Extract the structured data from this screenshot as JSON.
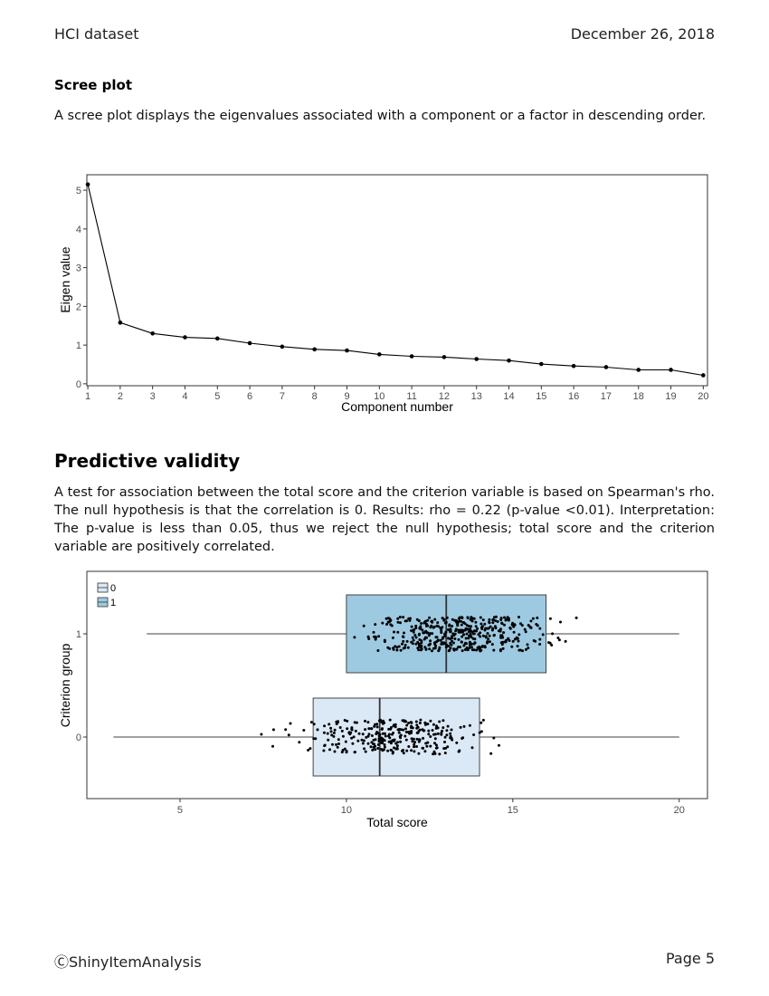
{
  "header": {
    "left": "HCI dataset",
    "right": "December 26, 2018"
  },
  "section_scree": {
    "heading": "Scree plot",
    "paragraph": "A scree plot displays the eigenvalues associated with a component or a factor in descending order."
  },
  "section_validity": {
    "heading": "Predictive validity",
    "paragraph": "A test for association between the total score and the criterion variable is based on Spearman's rho. The null hypothesis is that the correlation is 0. Results: rho = 0.22 (p-value <0.01). Interpretation: The p-value is less than 0.05, thus we reject the null hypothesis; total score and the criterion variable are positively correlated."
  },
  "footer": {
    "left": "ⒸShinyItemAnalysis",
    "right": "Page 5"
  },
  "chart_data": [
    {
      "type": "line",
      "xlabel": "Component number",
      "ylabel": "Eigen value",
      "x": [
        1,
        2,
        3,
        4,
        5,
        6,
        7,
        8,
        9,
        10,
        11,
        12,
        13,
        14,
        15,
        16,
        17,
        18,
        19,
        20
      ],
      "y": [
        5.15,
        1.58,
        1.3,
        1.2,
        1.17,
        1.05,
        0.96,
        0.89,
        0.86,
        0.76,
        0.71,
        0.69,
        0.64,
        0.6,
        0.51,
        0.46,
        0.43,
        0.36,
        0.36,
        0.22
      ],
      "xlim": [
        0.97,
        20.13
      ],
      "ylim": [
        -0.05,
        5.4
      ],
      "yticks": [
        0,
        1,
        2,
        3,
        4,
        5
      ],
      "xticks": [
        1,
        2,
        3,
        4,
        5,
        6,
        7,
        8,
        9,
        10,
        11,
        12,
        13,
        14,
        15,
        16,
        17,
        18,
        19,
        20
      ],
      "grid": false
    },
    {
      "type": "boxplot",
      "orientation": "horizontal",
      "xlabel": "Total score",
      "ylabel": "Criterion group",
      "xlim": [
        2.2,
        20.85
      ],
      "xticks": [
        5,
        10,
        15,
        20
      ],
      "yticks": [
        "0",
        "1"
      ],
      "legend": {
        "position": "top-left",
        "entries": [
          "0",
          "1"
        ]
      },
      "colors": {
        "group_0": "#dbe9f6",
        "group_1": "#9ecae1"
      },
      "groups": [
        {
          "name": "0",
          "whisker_low": 3,
          "q1": 9,
          "median": 11,
          "q3": 14,
          "whisker_high": 20
        },
        {
          "name": "1",
          "whisker_low": 4,
          "q1": 10,
          "median": 13,
          "q3": 16,
          "whisker_high": 20
        }
      ],
      "jittered_points": true
    }
  ]
}
